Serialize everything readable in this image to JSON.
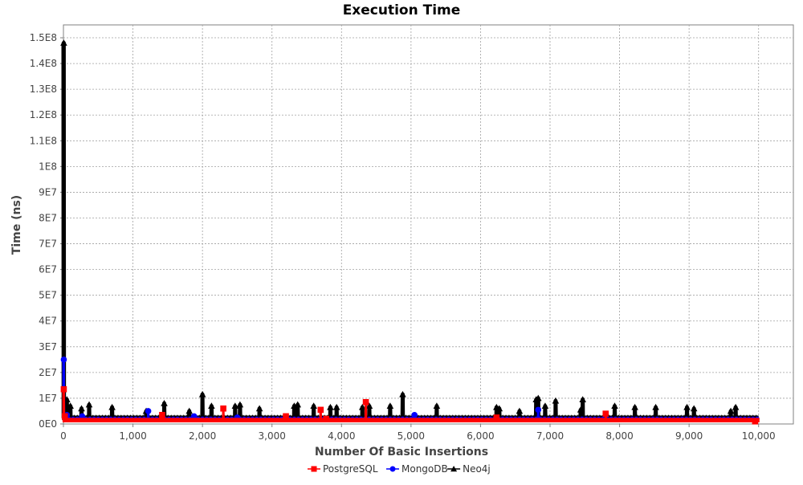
{
  "chart_data": {
    "type": "scatter",
    "title": "Execution Time",
    "xlabel": "Number Of Basic Insertions",
    "ylabel": "Time (ns)",
    "xlim": [
      0,
      10500
    ],
    "ylim": [
      0,
      155000000
    ],
    "x_ticks": [
      0,
      1000,
      2000,
      3000,
      4000,
      5000,
      6000,
      7000,
      8000,
      9000,
      10000
    ],
    "x_tick_labels": [
      "0",
      "1,000",
      "2,000",
      "3,000",
      "4,000",
      "5,000",
      "6,000",
      "7,000",
      "8,000",
      "9,000",
      "10,000"
    ],
    "y_ticks": [
      0,
      10000000,
      20000000,
      30000000,
      40000000,
      50000000,
      60000000,
      70000000,
      80000000,
      90000000,
      100000000,
      110000000,
      120000000,
      130000000,
      140000000,
      150000000
    ],
    "y_tick_labels": [
      "0E0",
      "1E7",
      "2E7",
      "3E7",
      "4E7",
      "5E7",
      "6E7",
      "7E7",
      "8E7",
      "9E7",
      "1E8",
      "1.1E8",
      "1.2E8",
      "1.3E8",
      "1.4E8",
      "1.5E8"
    ],
    "grid": true,
    "legend_position": "bottom",
    "series": [
      {
        "name": "PostgreSQL",
        "color": "#ff0000",
        "marker": "square",
        "baseline": 1500000,
        "baseline_x_range": [
          0,
          10000
        ],
        "points": [
          [
            5,
            13500000
          ],
          [
            20,
            3000000
          ],
          [
            1420,
            3500000
          ],
          [
            2300,
            6000000
          ],
          [
            3200,
            3000000
          ],
          [
            3700,
            5500000
          ],
          [
            3780,
            2000000
          ],
          [
            4350,
            8500000
          ],
          [
            6230,
            2500000
          ],
          [
            7800,
            4000000
          ],
          [
            9950,
            1000000
          ]
        ]
      },
      {
        "name": "MongoDB",
        "color": "#0000ff",
        "marker": "circle",
        "baseline": 2000000,
        "baseline_x_range": [
          0,
          10000
        ],
        "points": [
          [
            5,
            25000000
          ],
          [
            50,
            3500000
          ],
          [
            270,
            3000000
          ],
          [
            1220,
            5000000
          ],
          [
            1880,
            3000000
          ],
          [
            2500,
            2500000
          ],
          [
            5050,
            3500000
          ],
          [
            6830,
            5500000
          ]
        ]
      },
      {
        "name": "Neo4j",
        "color": "#000000",
        "marker": "triangle",
        "baseline": 2500000,
        "baseline_x_range": [
          0,
          10000
        ],
        "points": [
          [
            5,
            148000000
          ],
          [
            50,
            9500000
          ],
          [
            100,
            7000000
          ],
          [
            260,
            6000000
          ],
          [
            370,
            7500000
          ],
          [
            700,
            6500000
          ],
          [
            1190,
            5000000
          ],
          [
            1450,
            8000000
          ],
          [
            1810,
            5000000
          ],
          [
            2000,
            11500000
          ],
          [
            2130,
            7000000
          ],
          [
            2470,
            7000000
          ],
          [
            2540,
            7500000
          ],
          [
            2820,
            6000000
          ],
          [
            3320,
            7000000
          ],
          [
            3370,
            7500000
          ],
          [
            3600,
            7000000
          ],
          [
            3840,
            6500000
          ],
          [
            3930,
            6500000
          ],
          [
            4300,
            6500000
          ],
          [
            4400,
            7000000
          ],
          [
            4700,
            7000000
          ],
          [
            4880,
            11500000
          ],
          [
            5370,
            7000000
          ],
          [
            6230,
            6500000
          ],
          [
            6270,
            6000000
          ],
          [
            6560,
            5000000
          ],
          [
            6800,
            9500000
          ],
          [
            6830,
            10000000
          ],
          [
            6930,
            7000000
          ],
          [
            7080,
            9000000
          ],
          [
            7440,
            5500000
          ],
          [
            7470,
            9500000
          ],
          [
            7930,
            7000000
          ],
          [
            8220,
            6500000
          ],
          [
            8520,
            6500000
          ],
          [
            8970,
            6500000
          ],
          [
            9070,
            6000000
          ],
          [
            9600,
            5000000
          ],
          [
            9670,
            6500000
          ]
        ]
      }
    ]
  }
}
